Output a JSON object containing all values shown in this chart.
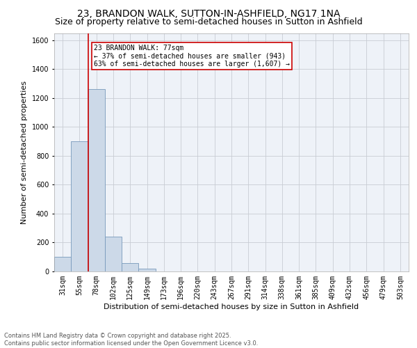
{
  "title": "23, BRANDON WALK, SUTTON-IN-ASHFIELD, NG17 1NA",
  "subtitle": "Size of property relative to semi-detached houses in Sutton in Ashfield",
  "xlabel": "Distribution of semi-detached houses by size in Sutton in Ashfield",
  "ylabel": "Number of semi-detached properties",
  "footer_line1": "Contains HM Land Registry data © Crown copyright and database right 2025.",
  "footer_line2": "Contains public sector information licensed under the Open Government Licence v3.0.",
  "annotation_title": "23 BRANDON WALK: 77sqm",
  "annotation_line1": "← 37% of semi-detached houses are smaller (943)",
  "annotation_line2": "63% of semi-detached houses are larger (1,607) →",
  "bar_categories": [
    "31sqm",
    "55sqm",
    "78sqm",
    "102sqm",
    "125sqm",
    "149sqm",
    "173sqm",
    "196sqm",
    "220sqm",
    "243sqm",
    "267sqm",
    "291sqm",
    "314sqm",
    "338sqm",
    "361sqm",
    "385sqm",
    "409sqm",
    "432sqm",
    "456sqm",
    "479sqm",
    "503sqm"
  ],
  "bar_values": [
    100,
    900,
    1260,
    240,
    60,
    20,
    0,
    0,
    0,
    0,
    0,
    0,
    0,
    0,
    0,
    0,
    0,
    0,
    0,
    0,
    0
  ],
  "bar_color": "#ccd9e8",
  "bar_edge_color": "#7799bb",
  "vline_color": "#cc0000",
  "vline_x_index": 2,
  "ylim": [
    0,
    1650
  ],
  "yticks": [
    0,
    200,
    400,
    600,
    800,
    1000,
    1200,
    1400,
    1600
  ],
  "bg_color": "#eef2f8",
  "grid_color": "#c8ccd4",
  "title_fontsize": 10,
  "subtitle_fontsize": 9,
  "axis_label_fontsize": 8,
  "tick_fontsize": 7,
  "footer_fontsize": 6
}
